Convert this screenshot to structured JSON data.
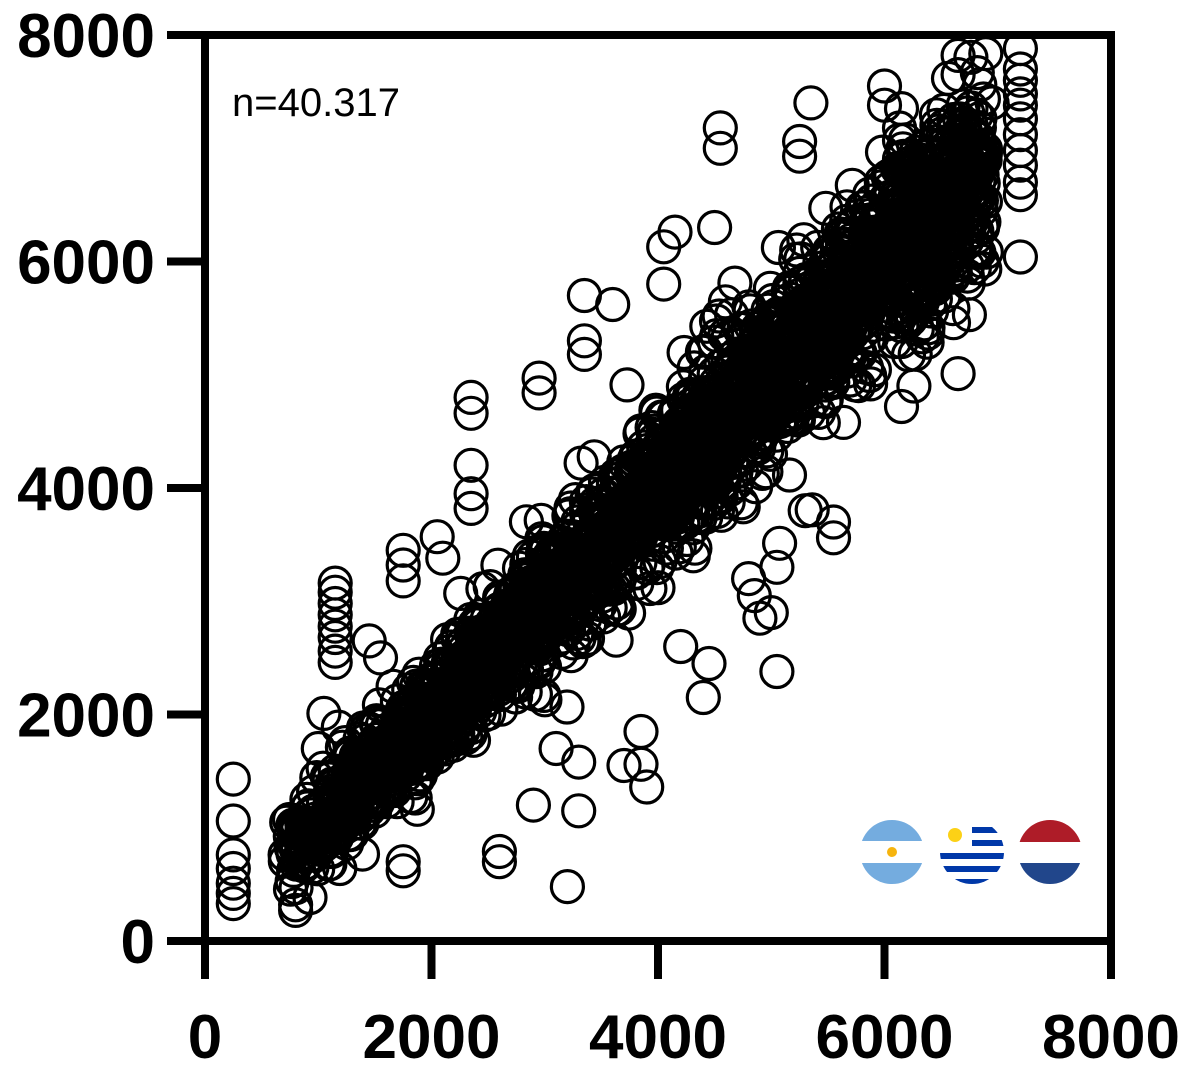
{
  "chart_data": {
    "type": "scatter",
    "title": "",
    "xlabel": "",
    "ylabel": "",
    "xlim": [
      0,
      8000
    ],
    "ylim": [
      0,
      8000
    ],
    "x_ticks": [
      "0",
      "2000",
      "4000",
      "6000",
      "8000"
    ],
    "y_ticks": [
      "0",
      "2000",
      "4000",
      "6000",
      "8000"
    ],
    "grid": false,
    "annotation": "n=40.317",
    "marker": "open-circle",
    "dense_core": {
      "description_trend": "y approximately equals x",
      "x_range": [
        700,
        6900
      ],
      "residual_sd": 450
    },
    "points": [
      [
        250,
        1430
      ],
      [
        250,
        1060
      ],
      [
        250,
        760
      ],
      [
        250,
        640
      ],
      [
        250,
        510
      ],
      [
        250,
        420
      ],
      [
        250,
        330
      ],
      [
        800,
        270
      ],
      [
        800,
        320
      ],
      [
        900,
        1250
      ],
      [
        1050,
        2010
      ],
      [
        1000,
        1700
      ],
      [
        1150,
        1500
      ],
      [
        1150,
        3160
      ],
      [
        1150,
        3080
      ],
      [
        1150,
        2980
      ],
      [
        1150,
        2880
      ],
      [
        1150,
        2780
      ],
      [
        1150,
        2680
      ],
      [
        1150,
        2560
      ],
      [
        1150,
        2460
      ],
      [
        1450,
        2650
      ],
      [
        1550,
        2500
      ],
      [
        1750,
        3450
      ],
      [
        1750,
        3320
      ],
      [
        1750,
        3180
      ],
      [
        1750,
        620
      ],
      [
        1750,
        700
      ],
      [
        2050,
        3570
      ],
      [
        2100,
        3380
      ],
      [
        2350,
        4800
      ],
      [
        2350,
        4660
      ],
      [
        2350,
        4200
      ],
      [
        2350,
        3950
      ],
      [
        2350,
        3820
      ],
      [
        2600,
        790
      ],
      [
        2600,
        700
      ],
      [
        2900,
        1200
      ],
      [
        2950,
        4970
      ],
      [
        2950,
        4840
      ],
      [
        3100,
        1700
      ],
      [
        3200,
        480
      ],
      [
        3300,
        1150
      ],
      [
        3300,
        1580
      ],
      [
        3350,
        5700
      ],
      [
        3350,
        5300
      ],
      [
        3350,
        5180
      ],
      [
        3600,
        5620
      ],
      [
        3700,
        1550
      ],
      [
        3850,
        1850
      ],
      [
        3850,
        1560
      ],
      [
        3900,
        1360
      ],
      [
        4050,
        6130
      ],
      [
        4050,
        5800
      ],
      [
        4150,
        6260
      ],
      [
        4200,
        2600
      ],
      [
        4400,
        2150
      ],
      [
        4450,
        2450
      ],
      [
        4500,
        6300
      ],
      [
        4550,
        7180
      ],
      [
        4550,
        7000
      ],
      [
        4800,
        3200
      ],
      [
        4850,
        3050
      ],
      [
        4900,
        2850
      ],
      [
        5000,
        2900
      ],
      [
        5050,
        2380
      ],
      [
        5050,
        3300
      ],
      [
        5250,
        6930
      ],
      [
        5250,
        7060
      ],
      [
        5300,
        3800
      ],
      [
        5350,
        7400
      ],
      [
        5550,
        3560
      ],
      [
        5550,
        3700
      ],
      [
        6000,
        7550
      ],
      [
        6000,
        7380
      ],
      [
        6150,
        7350
      ],
      [
        6150,
        4720
      ],
      [
        6350,
        6030
      ],
      [
        6350,
        5450
      ],
      [
        6650,
        5010
      ],
      [
        6650,
        7820
      ],
      [
        6650,
        7650
      ],
      [
        6750,
        5530
      ],
      [
        6950,
        7400
      ],
      [
        7200,
        7880
      ],
      [
        7200,
        7700
      ],
      [
        7200,
        7600
      ],
      [
        7200,
        7480
      ],
      [
        7200,
        7380
      ],
      [
        7200,
        7260
      ],
      [
        7200,
        7120
      ],
      [
        7200,
        6980
      ],
      [
        7200,
        6850
      ],
      [
        7200,
        6700
      ],
      [
        7200,
        6590
      ],
      [
        7200,
        6040
      ]
    ]
  },
  "flags": [
    {
      "name": "argentina-flag",
      "colors": [
        "#74acdf",
        "#ffffff",
        "#f6b40e"
      ]
    },
    {
      "name": "uruguay-flag",
      "colors": [
        "#0038a8",
        "#ffffff",
        "#fcd116"
      ]
    },
    {
      "name": "netherlands-flag",
      "colors": [
        "#ae1c28",
        "#ffffff",
        "#21468b"
      ]
    }
  ]
}
